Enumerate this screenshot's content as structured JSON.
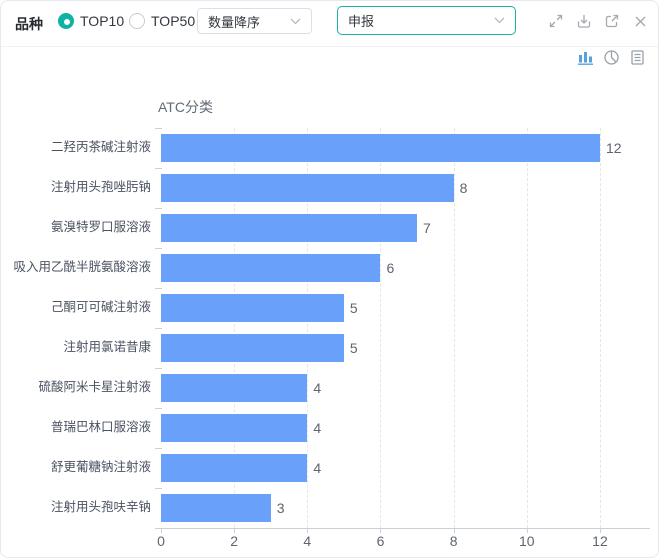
{
  "toolbar": {
    "filter_label": "品种",
    "radios": [
      {
        "label": "TOP10",
        "selected": true
      },
      {
        "label": "TOP50",
        "selected": false
      }
    ],
    "sort_select": {
      "value": "数量降序"
    },
    "metric_select": {
      "value": "申报"
    },
    "icons": [
      "fullscreen",
      "download",
      "external-link",
      "close"
    ]
  },
  "view_switcher": {
    "options": [
      {
        "name": "bar-chart",
        "active": true
      },
      {
        "name": "pie-chart",
        "active": false
      },
      {
        "name": "table",
        "active": false
      }
    ]
  },
  "chart_data": {
    "type": "bar",
    "orientation": "horizontal",
    "title": "ATC分类",
    "categories": [
      "二羟丙茶碱注射液",
      "注射用头孢唑肟钠",
      "氨溴特罗口服溶液",
      "吸入用乙酰半胱氨酸溶液",
      "己酮可可碱注射液",
      "注射用氯诺昔康",
      "硫酸阿米卡星注射液",
      "普瑞巴林口服溶液",
      "舒更葡糖钠注射液",
      "注射用头孢呋辛钠"
    ],
    "values": [
      12,
      8,
      7,
      6,
      5,
      5,
      4,
      4,
      4,
      3
    ],
    "xlabel": "",
    "ylabel": "ATC分类",
    "xticks": [
      0,
      2,
      4,
      6,
      8,
      10,
      12
    ],
    "xlim": [
      0,
      13.35
    ],
    "grid": "vertical-dashed",
    "legend": "none",
    "bar_color": "#69a1fa"
  },
  "colors": {
    "accent_teal": "#10b3a2",
    "bar_blue": "#69a1fa",
    "active_view_icon": "#55a3de",
    "icon_gray": "#a4a9b0"
  }
}
